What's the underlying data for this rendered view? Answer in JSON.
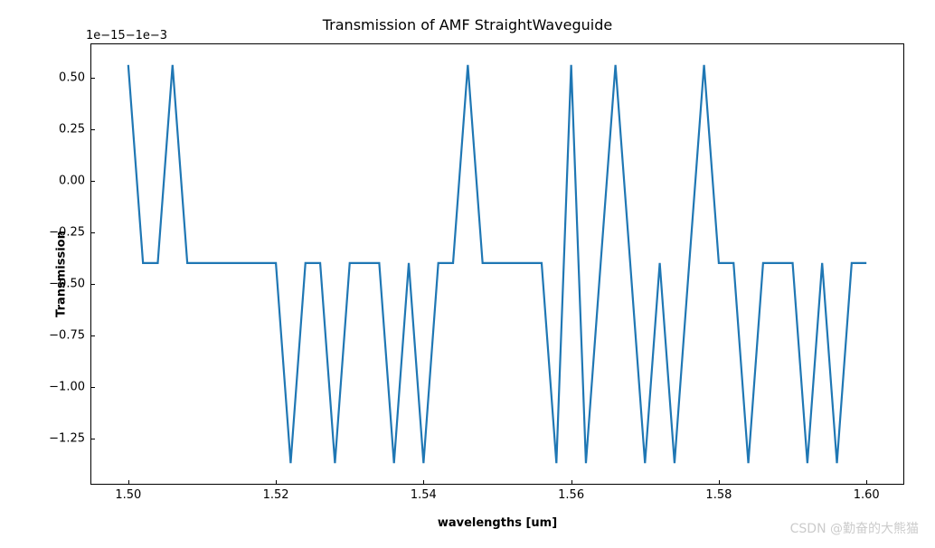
{
  "chart": {
    "type": "line",
    "title": "Transmission of AMF StraightWaveguide",
    "offset_text": "1e−15−1e−3",
    "xlabel": "wavelengths [um]",
    "ylabel": "Transmission",
    "title_fontsize": 16,
    "label_fontsize": 13,
    "tick_fontsize": 13,
    "line_color": "#1f77b4",
    "line_width": 2.2,
    "background_color": "#ffffff",
    "border_color": "#000000",
    "xlim": [
      1.495,
      1.605
    ],
    "ylim": [
      -1.47,
      0.66
    ],
    "xticks": [
      1.5,
      1.52,
      1.54,
      1.56,
      1.58,
      1.6
    ],
    "xtick_labels": [
      "1.50",
      "1.52",
      "1.54",
      "1.56",
      "1.58",
      "1.60"
    ],
    "yticks": [
      -1.25,
      -1.0,
      -0.75,
      -0.5,
      -0.25,
      0.0,
      0.25,
      0.5
    ],
    "ytick_labels": [
      "−1.25",
      "−1.00",
      "−0.75",
      "−0.50",
      "−0.25",
      "0.00",
      "0.25",
      "0.50"
    ],
    "x": [
      1.5,
      1.502,
      1.504,
      1.506,
      1.508,
      1.51,
      1.512,
      1.514,
      1.516,
      1.518,
      1.52,
      1.522,
      1.524,
      1.526,
      1.528,
      1.53,
      1.532,
      1.534,
      1.536,
      1.538,
      1.54,
      1.542,
      1.544,
      1.546,
      1.548,
      1.55,
      1.552,
      1.554,
      1.556,
      1.558,
      1.56,
      1.562,
      1.564,
      1.566,
      1.568,
      1.57,
      1.572,
      1.574,
      1.576,
      1.578,
      1.58,
      1.582,
      1.584,
      1.586,
      1.588,
      1.59,
      1.592,
      1.594,
      1.596,
      1.598,
      1.6
    ],
    "y": [
      0.56,
      -0.4,
      -0.4,
      0.56,
      -0.4,
      -0.4,
      -0.4,
      -0.4,
      -0.4,
      -0.4,
      -0.4,
      -1.37,
      -0.4,
      -0.4,
      -1.37,
      -0.4,
      -0.4,
      -0.4,
      -1.37,
      -0.4,
      -1.37,
      -0.4,
      -0.4,
      0.56,
      -0.4,
      -0.4,
      -0.4,
      -0.4,
      -0.4,
      -1.37,
      0.56,
      -1.37,
      -0.4,
      0.56,
      -0.4,
      -1.37,
      -0.4,
      -1.37,
      -0.4,
      0.56,
      -0.4,
      -0.4,
      -1.37,
      -0.4,
      -0.4,
      -0.4,
      -1.37,
      -0.4,
      -1.37,
      -0.4,
      -0.4
    ]
  },
  "watermark": "CSDN @勤奋的大熊猫"
}
